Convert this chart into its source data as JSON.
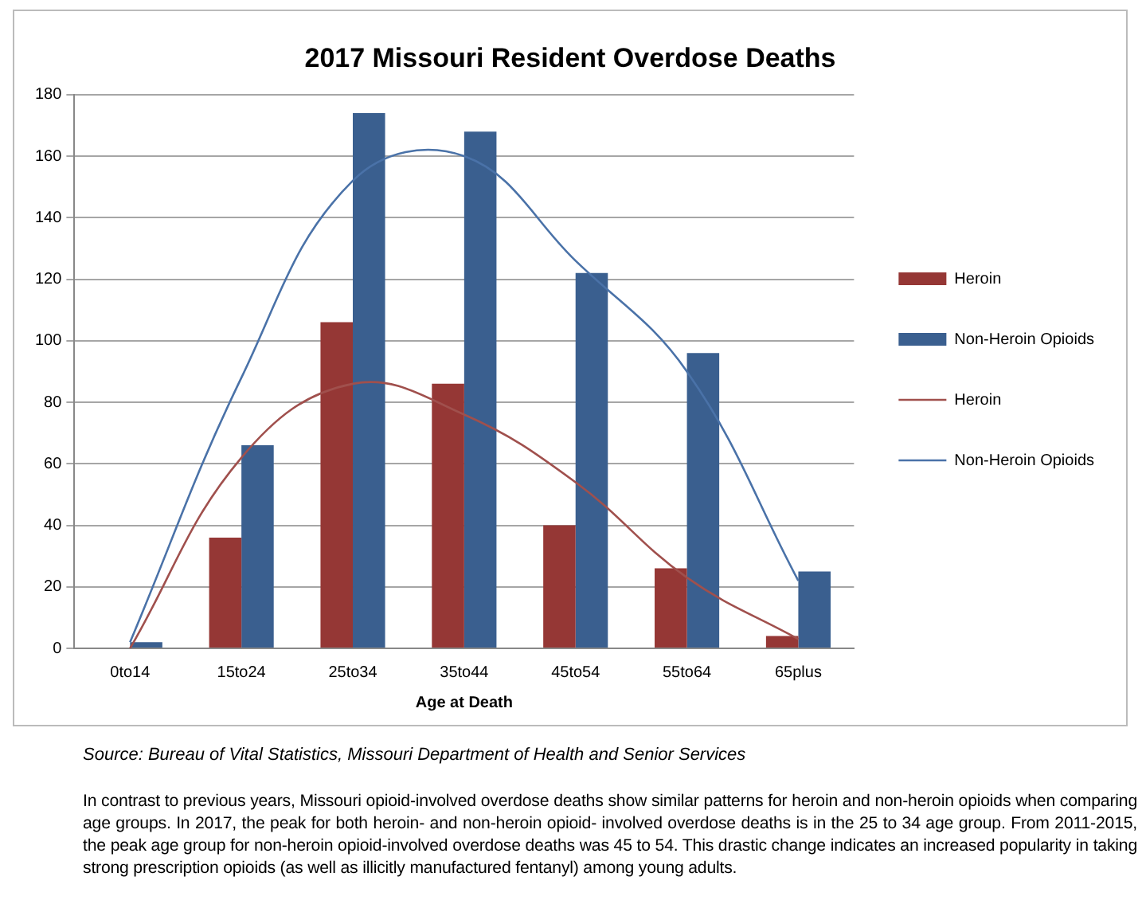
{
  "chart_data": {
    "type": "bar",
    "title": "2017 Missouri Resident Overdose Deaths",
    "xlabel": "Age at Death",
    "categories": [
      "0to14",
      "15to24",
      "25to34",
      "35to44",
      "45to54",
      "55to64",
      "65plus"
    ],
    "series": [
      {
        "name": "Heroin",
        "color": "#953735",
        "values": [
          0,
          36,
          106,
          86,
          40,
          26,
          4
        ]
      },
      {
        "name": "Non-Heroin Opioids",
        "color": "#3a5f8f",
        "values": [
          2,
          66,
          174,
          168,
          122,
          96,
          25
        ]
      },
      {
        "name": "Heroin",
        "type": "line",
        "color": "#a0504d",
        "values": [
          0,
          62,
          86,
          76,
          54,
          23,
          3
        ]
      },
      {
        "name": "Non-Heroin Opioids",
        "type": "line",
        "color": "#4a72a8",
        "values": [
          2,
          88,
          152,
          160,
          126,
          90,
          22
        ]
      }
    ],
    "ylim": [
      0,
      180
    ],
    "yticks": [
      0,
      20,
      40,
      60,
      80,
      100,
      120,
      140,
      160,
      180
    ],
    "grid": "y",
    "legend": "right",
    "marker": "none",
    "annotations": [
      "Source: Bureau of Vital Statistics, Missouri Department of Health and Senior Services",
      "In contrast to previous years, Missouri opioid-involved overdose deaths show similar patterns for heroin and non-heroin opioids when comparing age groups.  In 2017, the peak for both heroin- and non-heroin opioid- involved overdose deaths is in the 25 to 34 age group.  From 2011-2015, the peak age group for non-heroin opioid-involved overdose deaths was 45 to 54.  This drastic change indicates an increased popularity in taking strong prescription opioids (as well as illicitly manufactured fentanyl) among young adults."
    ]
  }
}
